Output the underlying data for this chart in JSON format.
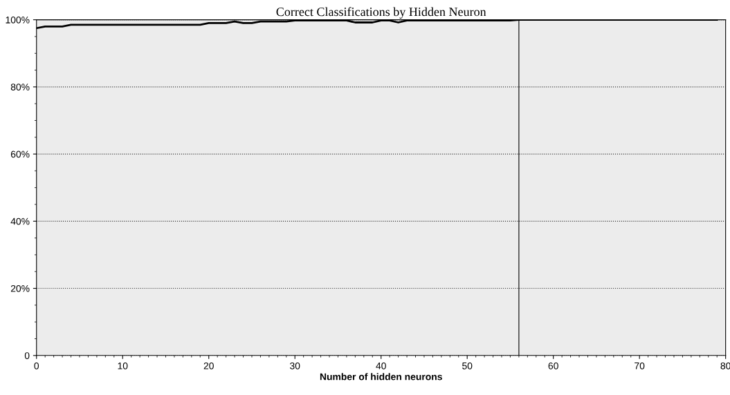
{
  "chart_data": {
    "type": "line",
    "title": "Correct Classifications by Hidden Neuron",
    "xlabel": "Number of hidden neurons",
    "x": [
      0,
      1,
      2,
      3,
      4,
      5,
      6,
      7,
      8,
      9,
      10,
      11,
      12,
      13,
      14,
      15,
      16,
      17,
      18,
      19,
      20,
      21,
      22,
      23,
      24,
      25,
      26,
      27,
      28,
      29,
      30,
      31,
      32,
      33,
      34,
      35,
      36,
      37,
      38,
      39,
      40,
      41,
      42,
      43,
      44,
      45,
      46,
      47,
      48,
      49,
      50,
      51,
      52,
      53,
      54,
      55,
      56,
      57,
      58,
      59,
      60,
      61,
      62,
      63,
      64,
      65,
      66,
      67,
      68,
      69,
      70,
      71,
      72,
      73,
      74,
      75,
      76,
      77,
      78,
      79
    ],
    "series": [
      {
        "color": "#000000",
        "values": [
          97.5,
          98,
          98,
          98,
          98.5,
          98.5,
          98.5,
          98.5,
          98.5,
          98.5,
          98.5,
          98.5,
          98.5,
          98.5,
          98.5,
          98.5,
          98.5,
          98.5,
          98.5,
          98.5,
          99,
          99,
          99,
          99.5,
          99,
          99,
          99.5,
          99.5,
          99.5,
          99.5,
          99.8,
          99.8,
          99.8,
          99.8,
          99.8,
          99.8,
          99.8,
          99.2,
          99.2,
          99.2,
          99.8,
          99.8,
          99.2,
          99.8,
          99.8,
          99.8,
          99.8,
          99.8,
          99.8,
          99.8,
          99.8,
          99.8,
          99.8,
          99.8,
          99.8,
          99.8,
          100,
          100,
          100,
          100,
          100,
          100,
          100,
          100,
          100,
          100,
          100,
          100,
          100,
          100,
          100,
          100,
          100,
          100,
          100,
          100,
          100,
          100,
          100,
          100
        ]
      }
    ],
    "xlim": [
      0,
      80
    ],
    "xticks": [
      0,
      10,
      20,
      30,
      40,
      50,
      60,
      70,
      80
    ],
    "ylim": [
      0,
      100
    ],
    "yticks": [
      {
        "value": 0,
        "label": "0"
      },
      {
        "value": 20,
        "label": "20%"
      },
      {
        "value": 40,
        "label": "40%"
      },
      {
        "value": 60,
        "label": "60%"
      },
      {
        "value": 80,
        "label": "80%"
      },
      {
        "value": 100,
        "label": "100%"
      }
    ],
    "ref_lines": [
      {
        "axis": "x",
        "value": 56,
        "color": "#000000"
      }
    ],
    "grid": "y",
    "line_style": "solid",
    "marker": "none"
  }
}
